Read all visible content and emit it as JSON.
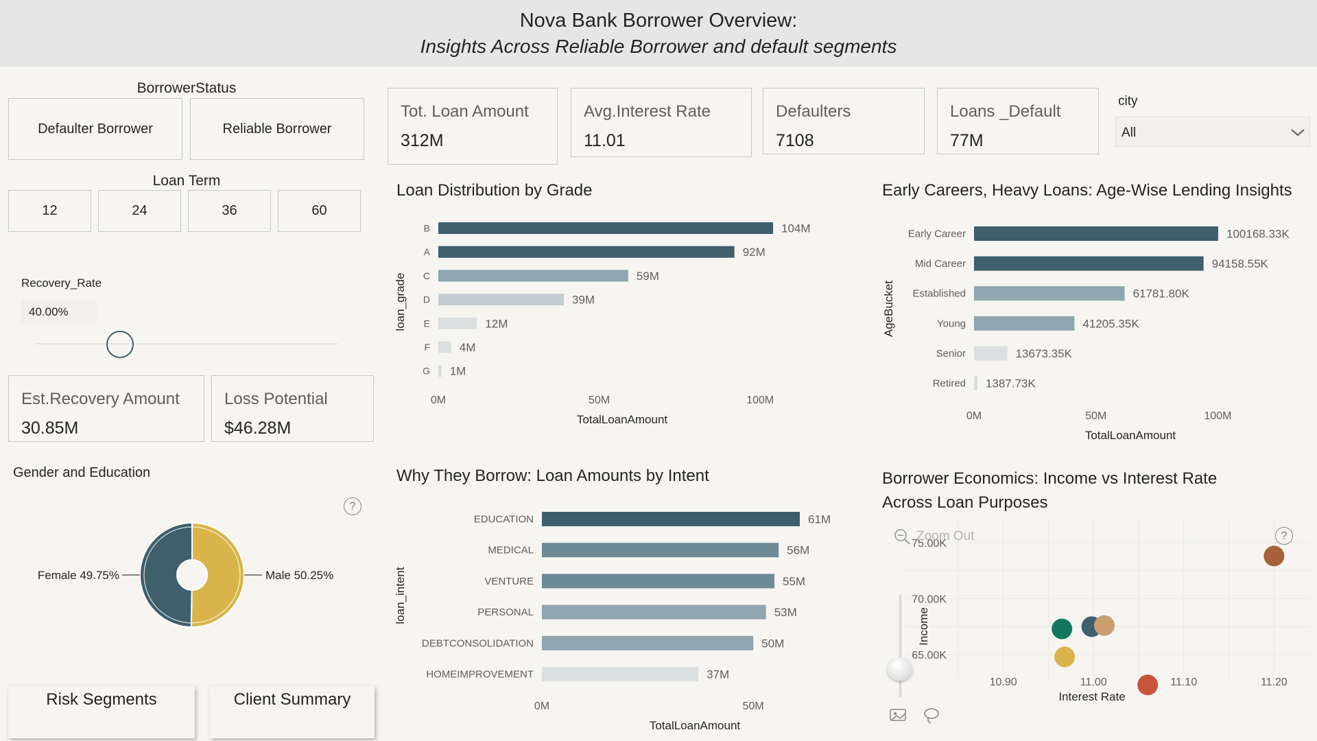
{
  "header": {
    "title": "Nova Bank Borrower Overview:",
    "subtitle": "Insights Across Reliable Borrower  and default segments"
  },
  "borrower_status": {
    "label": "BorrowerStatus",
    "buttons": [
      "Defaulter Borrower",
      "Reliable Borrower"
    ]
  },
  "loan_term": {
    "label": "Loan Term",
    "buttons": [
      "12",
      "24",
      "36",
      "60"
    ]
  },
  "recovery": {
    "label": "Recovery_Rate",
    "value": "40.00%",
    "fraction": 0.4
  },
  "kpis": {
    "tot_loan": {
      "label": "Tot. Loan Amount",
      "value": "312M"
    },
    "avg_rate": {
      "label": "Avg.Interest Rate",
      "value": "11.01"
    },
    "defaulters": {
      "label": "Defaulters",
      "value": "7108"
    },
    "loans_default": {
      "label": "Loans _Default",
      "value": "77M"
    },
    "est_recovery": {
      "label": "Est.Recovery Amount",
      "value": "30.85M"
    },
    "loss_potential": {
      "label": "Loss Potential",
      "value": "$46.28M"
    }
  },
  "city": {
    "label": "city",
    "value": "All"
  },
  "gender_edu": {
    "title": "Gender and Education",
    "female_label": "Female 49.75%",
    "male_label": "Male 50.25%"
  },
  "nav": {
    "risk": "Risk Segments",
    "client": "Client Summary"
  },
  "scatter_toolbar": {
    "zoom_out": "Zoom Out"
  },
  "colors": {
    "dark_teal": "#3e5f6b",
    "mid_teal": "#6e8a94",
    "light_teal": "#8fa6ae",
    "gray": "#c4cdd0",
    "light_gray": "#dcdfe0",
    "gold": "#d8b44a",
    "green": "#11785f",
    "tan": "#c9a06e",
    "brown": "#a86138",
    "red_orange": "#c8553a"
  },
  "chart_data": [
    {
      "id": "grade",
      "type": "bar",
      "orientation": "horizontal",
      "title": "Loan Distribution by Grade",
      "xlabel": "TotalLoanAmount",
      "ylabel": "loan_grade",
      "categories": [
        "B",
        "A",
        "C",
        "D",
        "E",
        "F",
        "G"
      ],
      "values": [
        104,
        92,
        59,
        39,
        12,
        4,
        1
      ],
      "labels": [
        "104M",
        "92M",
        "59M",
        "39M",
        "12M",
        "4M",
        "1M"
      ],
      "ticks": [
        "0M",
        "50M",
        "100M"
      ],
      "tick_values": [
        0,
        50,
        100
      ],
      "xlim": [
        0,
        104
      ]
    },
    {
      "id": "age",
      "type": "bar",
      "orientation": "horizontal",
      "title": "Early Careers, Heavy Loans: Age-Wise Lending Insights",
      "xlabel": "TotalLoanAmount",
      "ylabel": "AgeBucket",
      "categories": [
        "Early Career",
        "Mid Career",
        "Established",
        "Young",
        "Senior",
        "Retired"
      ],
      "values": [
        100.16833,
        94.15855,
        61.7818,
        41.20535,
        13.67335,
        1.38773
      ],
      "labels": [
        "100168.33K",
        "94158.55K",
        "61781.80K",
        "41205.35K",
        "13673.35K",
        "1387.73K"
      ],
      "ticks": [
        "0M",
        "50M",
        "100M"
      ],
      "tick_values": [
        0,
        50,
        100
      ],
      "xlim": [
        0,
        100.16833
      ]
    },
    {
      "id": "intent",
      "type": "bar",
      "orientation": "horizontal",
      "title": "Why They Borrow: Loan Amounts by Intent",
      "xlabel": "TotalLoanAmount",
      "ylabel": "loan_intent",
      "categories": [
        "EDUCATION",
        "MEDICAL",
        "VENTURE",
        "PERSONAL",
        "DEBTCONSOLIDATION",
        "HOMEIMPROVEMENT"
      ],
      "values": [
        61,
        56,
        55,
        53,
        50,
        37
      ],
      "labels": [
        "61M",
        "56M",
        "55M",
        "53M",
        "50M",
        "37M"
      ],
      "ticks": [
        "0M",
        "50M"
      ],
      "tick_values": [
        0,
        50
      ],
      "xlim": [
        0,
        61
      ]
    },
    {
      "id": "scatter",
      "type": "scatter",
      "title": "Borrower Economics: Income vs Interest Rate Across Loan Purposes",
      "title_lines": [
        "Borrower Economics: Income vs Interest Rate",
        "Across Loan Purposes"
      ],
      "xlabel": "Interest Rate",
      "ylabel": "Income",
      "x_ticks": [
        "10.90",
        "11.00",
        "11.10",
        "11.20"
      ],
      "x_tick_values": [
        10.9,
        11.0,
        11.1,
        11.2
      ],
      "y_ticks": [
        "75.00K",
        "70.00K",
        "65.00K"
      ],
      "y_tick_values": [
        75,
        70,
        65
      ],
      "xlim": [
        10.86,
        11.24
      ],
      "ylim": [
        62.5,
        77.5
      ],
      "points": [
        {
          "x": 10.965,
          "y": 67.3,
          "color": "#11785f"
        },
        {
          "x": 10.968,
          "y": 64.8,
          "color": "#d8b44a"
        },
        {
          "x": 10.998,
          "y": 67.5,
          "color": "#3e5f6b"
        },
        {
          "x": 11.012,
          "y": 67.6,
          "color": "#c9a06e"
        },
        {
          "x": 11.06,
          "y": 62.3,
          "color": "#c8553a"
        },
        {
          "x": 11.2,
          "y": 73.8,
          "color": "#a86138"
        }
      ]
    },
    {
      "id": "gender",
      "type": "pie",
      "title": "Gender and Education",
      "slices": [
        {
          "label": "Female",
          "value": 49.75,
          "color": "#3e5f6b"
        },
        {
          "label": "Male",
          "value": 50.25,
          "color": "#d8b44a"
        }
      ]
    }
  ]
}
